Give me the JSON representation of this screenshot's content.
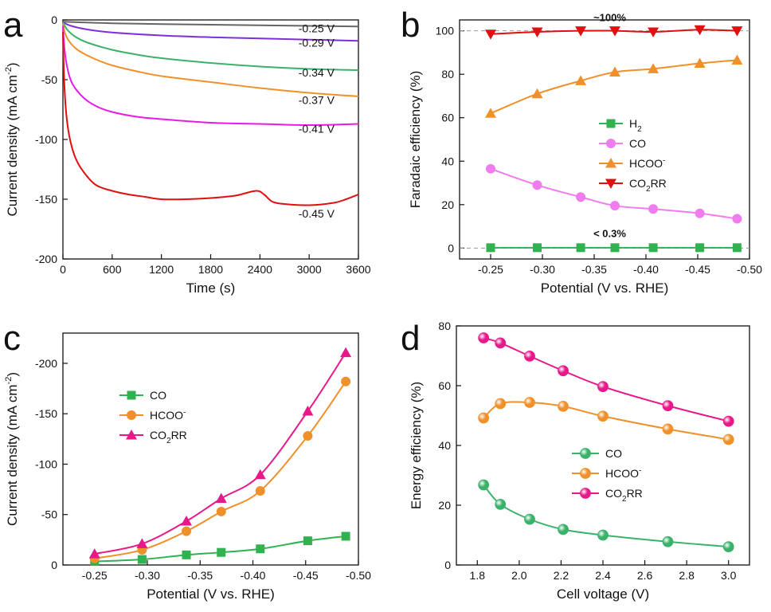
{
  "chart_data": [
    {
      "panel": "a",
      "type": "line",
      "xlabel": "Time (s)",
      "ylabel": "Current density (mA cm-2)",
      "ylabel_main": "Current density (mA cm",
      "ylabel_sup": "-2",
      "ylabel_end": ")",
      "xlim": [
        0,
        3600
      ],
      "ylim": [
        -200,
        0
      ],
      "xticks": [
        0,
        600,
        1200,
        1800,
        2400,
        3000,
        3600
      ],
      "yticks": [
        0,
        -50,
        -100,
        -150,
        -200
      ],
      "series": [
        {
          "name": "-0.25 V",
          "color": "#666666",
          "x": [
            0,
            200,
            600,
            1200,
            1800,
            2400,
            3000,
            3600
          ],
          "y": [
            -1.5,
            -2,
            -2.8,
            -3.5,
            -4,
            -4.5,
            -5,
            -5.5
          ]
        },
        {
          "name": "-0.29 V",
          "color": "#7f2fd9",
          "x": [
            0,
            100,
            300,
            600,
            1200,
            1800,
            2400,
            3000,
            3600
          ],
          "y": [
            -2,
            -5,
            -8,
            -10.5,
            -13,
            -14.5,
            -15.5,
            -16.5,
            -17.5
          ]
        },
        {
          "name": "-0.34 V",
          "color": "#3bb26a",
          "x": [
            0,
            50,
            150,
            300,
            600,
            900,
            1200,
            1800,
            2400,
            3000,
            3600
          ],
          "y": [
            -2,
            -8,
            -14,
            -19,
            -25,
            -29,
            -32,
            -36,
            -39,
            -41,
            -42
          ]
        },
        {
          "name": "-0.37 V",
          "color": "#f0902a",
          "x": [
            0,
            30,
            100,
            200,
            400,
            600,
            900,
            1200,
            1800,
            2400,
            3000,
            3600
          ],
          "y": [
            -3,
            -12,
            -20,
            -26,
            -33,
            -38,
            -43,
            -47,
            -52,
            -57,
            -61,
            -64
          ]
        },
        {
          "name": "-0.41 V",
          "color": "#e81ae8",
          "x": [
            0,
            20,
            60,
            120,
            250,
            400,
            600,
            900,
            1200,
            1800,
            2400,
            3000,
            3600
          ],
          "y": [
            -5,
            -25,
            -42,
            -54,
            -65,
            -72,
            -77,
            -81,
            -83,
            -86,
            -87,
            -88,
            -87
          ]
        },
        {
          "name": "-0.45 V",
          "color": "#e01010",
          "x": [
            0,
            15,
            40,
            80,
            150,
            250,
            400,
            600,
            800,
            1000,
            1200,
            1500,
            1800,
            2100,
            2350,
            2450,
            2550,
            2700,
            3000,
            3300,
            3450,
            3600
          ],
          "y": [
            -10,
            -50,
            -78,
            -98,
            -115,
            -127,
            -138,
            -143,
            -146,
            -148,
            -150,
            -150,
            -149,
            -147,
            -143,
            -146,
            -152,
            -154,
            -155,
            -153,
            -150,
            -146
          ]
        }
      ]
    },
    {
      "panel": "b",
      "type": "line",
      "xlabel": "Potential (V vs. RHE)",
      "ylabel": "Faradaic efficiency (%)",
      "xlim": [
        -0.22,
        -0.5
      ],
      "ylim": [
        -5,
        105
      ],
      "xticks": [
        -0.25,
        -0.3,
        -0.35,
        -0.4,
        -0.45,
        -0.5
      ],
      "xtick_labels": [
        "-0.25",
        "-0.30",
        "-0.35",
        "-0.40",
        "-0.45",
        "-0.50"
      ],
      "yticks": [
        0,
        20,
        40,
        60,
        80,
        100
      ],
      "x": [
        -0.25,
        -0.295,
        -0.337,
        -0.37,
        -0.407,
        -0.452,
        -0.488
      ],
      "series": [
        {
          "name": "H2",
          "label_main": "H",
          "label_sub": "2",
          "color": "#2fb24f",
          "marker": "square",
          "values": [
            0.2,
            0.2,
            0.2,
            0.2,
            0.2,
            0.2,
            0.2
          ]
        },
        {
          "name": "CO",
          "label_main": "CO",
          "color": "#f07cf0",
          "marker": "circle",
          "values": [
            36.5,
            29,
            23.5,
            19.5,
            18,
            16,
            13.5
          ]
        },
        {
          "name": "HCOO-",
          "label_main": "HCOO",
          "label_sup": "-",
          "color": "#f0902a",
          "marker": "triangle",
          "values": [
            62,
            71,
            77,
            81,
            82.5,
            85,
            86.5
          ]
        },
        {
          "name": "CO2RR",
          "label_main": "CO",
          "label_sub": "2",
          "label_end": "RR",
          "color": "#e01010",
          "marker": "triangle-down",
          "values": [
            98.5,
            99.5,
            100,
            100,
            99.5,
            100.5,
            100
          ]
        }
      ],
      "annotations": [
        "~100%",
        "< 0.3%"
      ]
    },
    {
      "panel": "c",
      "type": "line",
      "xlabel": "Potential (V vs. RHE)",
      "ylabel": "Current density (mA cm-2)",
      "ylabel_main": "Current density (mA cm",
      "ylabel_sup": "-2",
      "ylabel_end": ")",
      "xlim": [
        -0.22,
        -0.5
      ],
      "ylim": [
        0,
        -230
      ],
      "xticks": [
        -0.25,
        -0.3,
        -0.35,
        -0.4,
        -0.45,
        -0.5
      ],
      "xtick_labels": [
        "-0.25",
        "-0.30",
        "-0.35",
        "-0.40",
        "-0.45",
        "-0.50"
      ],
      "yticks": [
        0,
        -50,
        -100,
        -150,
        -200
      ],
      "x": [
        -0.25,
        -0.295,
        -0.337,
        -0.37,
        -0.407,
        -0.452,
        -0.488
      ],
      "series": [
        {
          "name": "CO",
          "label_main": "CO",
          "color": "#2fb24f",
          "marker": "square",
          "values": [
            -3.5,
            -5.5,
            -10,
            -12.5,
            -16,
            -24,
            -28.5
          ]
        },
        {
          "name": "HCOO-",
          "label_main": "HCOO",
          "label_sup": "-",
          "color": "#f0902a",
          "marker": "circle",
          "values": [
            -6.5,
            -15,
            -33.5,
            -53,
            -73.5,
            -128,
            -182
          ]
        },
        {
          "name": "CO2RR",
          "label_main": "CO",
          "label_sub": "2",
          "label_end": "RR",
          "color": "#e8188a",
          "marker": "triangle",
          "values": [
            -11,
            -21,
            -43.5,
            -66,
            -89.5,
            -152.5,
            -210.5
          ]
        }
      ]
    },
    {
      "panel": "d",
      "type": "line",
      "xlabel": "Cell voltage (V)",
      "ylabel": "Energy efficiency (%)",
      "xlim": [
        1.7,
        3.1
      ],
      "ylim": [
        0,
        80
      ],
      "xticks": [
        1.8,
        2.0,
        2.2,
        2.4,
        2.6,
        2.8,
        3.0
      ],
      "xtick_labels": [
        "1.8",
        "2.0",
        "2.2",
        "2.4",
        "2.6",
        "2.8",
        "3.0"
      ],
      "yticks": [
        0,
        20,
        40,
        60,
        80
      ],
      "x": [
        1.83,
        1.91,
        2.05,
        2.21,
        2.4,
        2.71,
        3.0
      ],
      "series": [
        {
          "name": "CO",
          "label_main": "CO",
          "color": "#3bb26a",
          "marker": "circle",
          "values": [
            26.8,
            20.3,
            15.3,
            11.9,
            10,
            7.8,
            6.1
          ]
        },
        {
          "name": "HCOO-",
          "label_main": "HCOO",
          "label_sup": "-",
          "color": "#f0902a",
          "marker": "circle",
          "values": [
            49.2,
            54,
            54.4,
            53.1,
            49.8,
            45.5,
            42
          ]
        },
        {
          "name": "CO2RR",
          "label_main": "CO",
          "label_sub": "2",
          "label_end": "RR",
          "color": "#e8188a",
          "marker": "circle",
          "values": [
            76,
            74.3,
            69.9,
            65,
            59.7,
            53.3,
            48.1
          ]
        }
      ]
    }
  ]
}
